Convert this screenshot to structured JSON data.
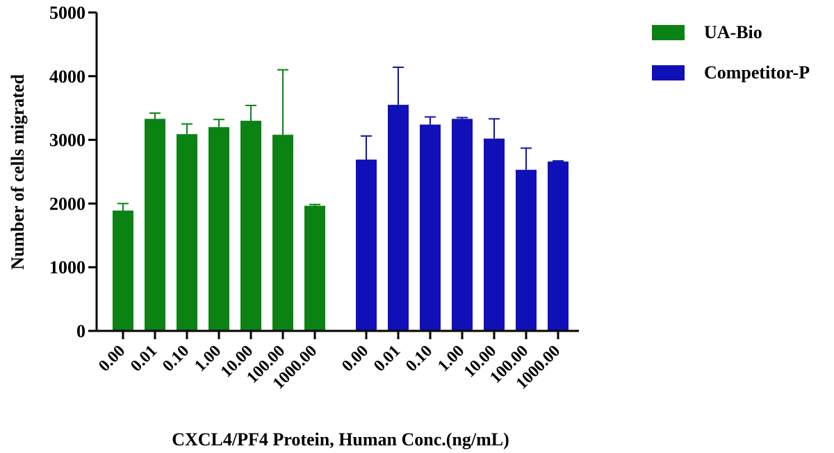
{
  "chart_data": {
    "type": "bar",
    "xlabel": "CXCL4/PF4 Protein, Human Conc.(ng/mL)",
    "ylabel": "Number of cells migrated",
    "ylim": [
      0,
      5000
    ],
    "yticks": [
      0,
      1000,
      2000,
      3000,
      4000,
      5000
    ],
    "grid": false,
    "legend_position": "top-right",
    "series": [
      {
        "name": "UA-Bio",
        "color": "#0a8214",
        "categories": [
          "0.00",
          "0.01",
          "0.10",
          "1.00",
          "10.00",
          "100.00",
          "1000.00"
        ],
        "values": [
          1890,
          3330,
          3090,
          3200,
          3300,
          3080,
          1965
        ],
        "error_upper": [
          2000,
          3420,
          3250,
          3320,
          3540,
          4100,
          1985
        ]
      },
      {
        "name": "Competitor-P",
        "color": "#1010b8",
        "categories": [
          "0.00",
          "0.01",
          "0.10",
          "1.00",
          "10.00",
          "100.00",
          "1000.00"
        ],
        "values": [
          2690,
          3550,
          3240,
          3330,
          3020,
          2530,
          2660
        ],
        "error_upper": [
          3060,
          4140,
          3360,
          3350,
          3330,
          2870,
          2670
        ]
      }
    ]
  }
}
